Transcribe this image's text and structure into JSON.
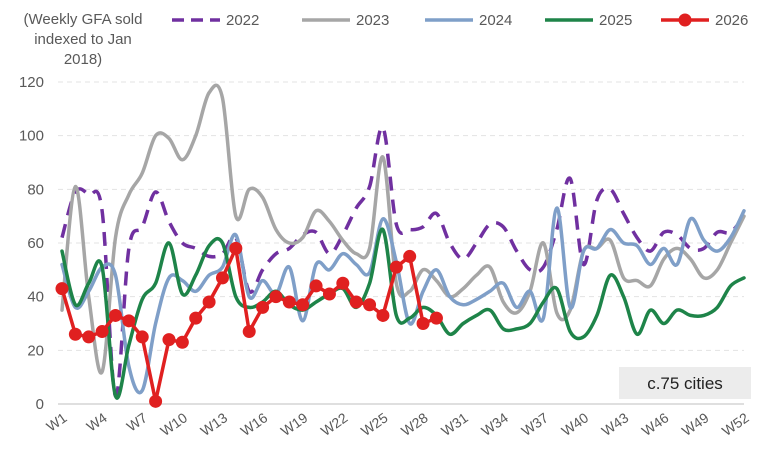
{
  "chart_data": {
    "type": "line",
    "ylabel": "(Weekly GFA sold indexed to Jan 2018)",
    "ylabel_lines": [
      "(Weekly GFA sold",
      "indexed to Jan",
      "2018)"
    ],
    "ylim": [
      0,
      120
    ],
    "yticks": [
      0,
      20,
      40,
      60,
      80,
      100,
      120
    ],
    "x_categories": [
      "W1",
      "W2",
      "W3",
      "W4",
      "W5",
      "W6",
      "W7",
      "W8",
      "W9",
      "W10",
      "W11",
      "W12",
      "W13",
      "W14",
      "W15",
      "W16",
      "W17",
      "W18",
      "W19",
      "W20",
      "W21",
      "W22",
      "W23",
      "W24",
      "W25",
      "W26",
      "W27",
      "W28",
      "W29",
      "W30",
      "W31",
      "W32",
      "W33",
      "W34",
      "W35",
      "W36",
      "W37",
      "W38",
      "W39",
      "W40",
      "W41",
      "W42",
      "W43",
      "W44",
      "W45",
      "W46",
      "W47",
      "W48",
      "W49",
      "W50",
      "W51",
      "W52"
    ],
    "x_tick_labels": [
      "W1",
      "W4",
      "W7",
      "W10",
      "W13",
      "W16",
      "W19",
      "W22",
      "W25",
      "W28",
      "W31",
      "W34",
      "W37",
      "W40",
      "W43",
      "W46",
      "W49",
      "W52"
    ],
    "x_tick_weeks": [
      1,
      4,
      7,
      10,
      13,
      16,
      19,
      22,
      25,
      28,
      31,
      34,
      37,
      40,
      43,
      46,
      49,
      52
    ],
    "grid": true,
    "legend_position": "top",
    "annotation": "c.75 cities",
    "series": [
      {
        "name": "2022",
        "color": "#7030A0",
        "style": "dashed",
        "markers": false,
        "values": [
          62,
          79,
          78,
          72,
          3,
          58,
          66,
          79,
          68,
          60,
          58,
          55,
          56,
          62,
          42,
          50,
          56,
          58,
          63,
          64,
          56,
          63,
          73,
          81,
          103,
          67,
          65,
          66,
          71,
          60,
          54,
          60,
          67,
          66,
          57,
          50,
          51,
          65,
          84,
          52,
          76,
          80,
          71,
          62,
          57,
          64,
          63,
          58,
          58,
          64,
          64,
          70
        ]
      },
      {
        "name": "2023",
        "color": "#A6A6A6",
        "style": "solid",
        "markers": false,
        "values": [
          35,
          81,
          40,
          12,
          62,
          78,
          86,
          100,
          99,
          91,
          100,
          116,
          114,
          70,
          80,
          77,
          65,
          60,
          62,
          72,
          68,
          61,
          56,
          58,
          92,
          45,
          42,
          50,
          46,
          40,
          43,
          48,
          51,
          38,
          34,
          42,
          60,
          34,
          35,
          57,
          58,
          61,
          47,
          46,
          44,
          54,
          58,
          54,
          47,
          50,
          60,
          70
        ]
      },
      {
        "name": "2024",
        "color": "#7F9FC8",
        "style": "solid",
        "markers": false,
        "values": [
          52,
          36,
          42,
          51,
          48,
          14,
          5,
          30,
          47,
          46,
          42,
          48,
          51,
          63,
          40,
          46,
          41,
          51,
          31,
          52,
          50,
          56,
          52,
          49,
          69,
          53,
          30,
          42,
          50,
          40,
          37,
          39,
          42,
          45,
          36,
          42,
          32,
          73,
          36,
          57,
          58,
          65,
          60,
          59,
          52,
          58,
          52,
          69,
          61,
          57,
          62,
          72
        ]
      },
      {
        "name": "2025",
        "color": "#1E8449",
        "style": "solid",
        "markers": false,
        "values": [
          57,
          37,
          45,
          51,
          3,
          22,
          39,
          45,
          60,
          41,
          48,
          59,
          60,
          40,
          36,
          38,
          42,
          37,
          35,
          38,
          41,
          43,
          36,
          45,
          65,
          33,
          32,
          36,
          33,
          26,
          30,
          33,
          35,
          28,
          28,
          30,
          38,
          43,
          27,
          25,
          33,
          48,
          40,
          26,
          35,
          30,
          35,
          33,
          33,
          36,
          44,
          47
        ]
      },
      {
        "name": "2026",
        "color": "#E02020",
        "style": "solid",
        "markers": true,
        "values": [
          43,
          26,
          25,
          27,
          33,
          31,
          25,
          1,
          24,
          23,
          32,
          38,
          47,
          58,
          27,
          36,
          40,
          38,
          37,
          44,
          41,
          45,
          38,
          37,
          33,
          51,
          55,
          30,
          32
        ]
      }
    ]
  }
}
